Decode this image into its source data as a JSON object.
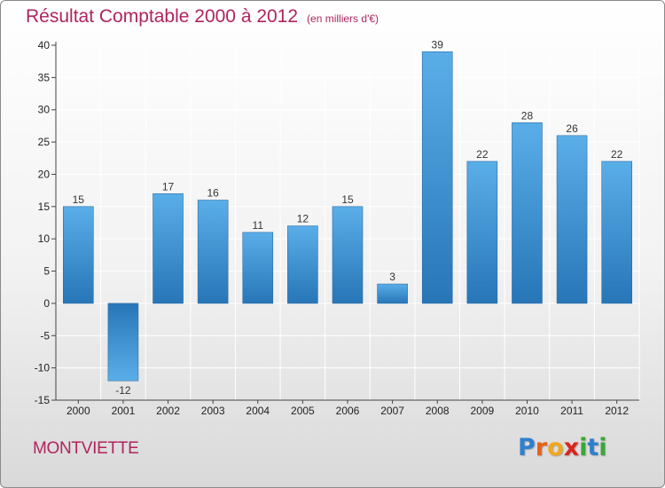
{
  "chart_data": {
    "type": "bar",
    "title": "Résultat Comptable 2000 à 2012",
    "subtitle": "(en milliers d'€)",
    "categories": [
      "2000",
      "2001",
      "2002",
      "2003",
      "2004",
      "2005",
      "2006",
      "2007",
      "2008",
      "2009",
      "2010",
      "2011",
      "2012"
    ],
    "values": [
      15,
      -12,
      17,
      16,
      11,
      12,
      15,
      3,
      39,
      22,
      28,
      26,
      22
    ],
    "ylim": [
      -15,
      40
    ],
    "yticks": [
      -15,
      -10,
      -5,
      0,
      5,
      10,
      15,
      20,
      25,
      30,
      35,
      40
    ],
    "xlabel": "",
    "ylabel": "",
    "grid": true,
    "colors": {
      "bar_top": "#5aaee8",
      "bar_bottom": "#2776b8",
      "neg_top": "#2776b8",
      "neg_bottom": "#5aaee8",
      "grid": "#ffffff",
      "title": "#b0245e"
    }
  },
  "footer": {
    "city": "MONTVIETTE",
    "logo_letters": [
      {
        "ch": "P",
        "color": "#2f7fd0"
      },
      {
        "ch": "r",
        "color": "#e8611a"
      },
      {
        "ch": "o",
        "color": "#f2a81d"
      },
      {
        "ch": "x",
        "color": "#d9261c"
      },
      {
        "ch": "i",
        "color": "#3aa63a"
      },
      {
        "ch": "t",
        "color": "#2f7fd0"
      },
      {
        "ch": "i",
        "color": "#3aa63a"
      }
    ]
  }
}
